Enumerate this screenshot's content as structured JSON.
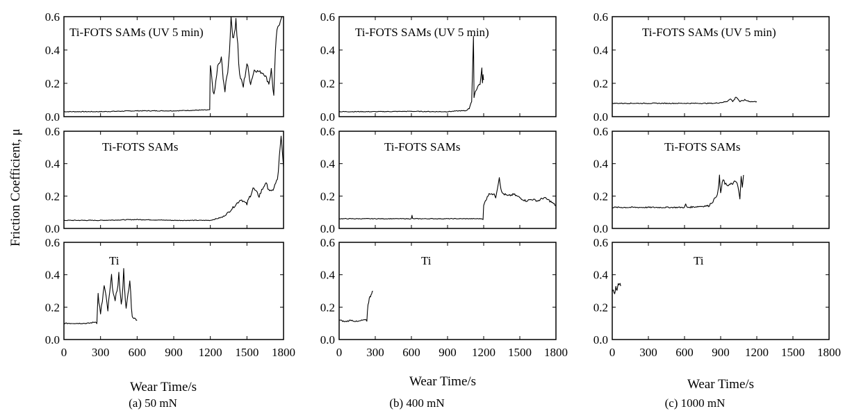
{
  "figure": {
    "ylabel": "Friction Coefficient, μ",
    "xlabel": "Wear Time/s",
    "xticks": [
      "0",
      "300",
      "600",
      "900",
      "1200",
      "1500",
      "1800"
    ],
    "yticks": [
      "0.0",
      "0.2",
      "0.4",
      "0.6"
    ]
  },
  "chart_data": [
    {
      "type": "line",
      "caption": "(a) 50 mN",
      "xlabel": "Wear Time/s",
      "ylabel": "Friction Coefficient, μ",
      "panels": [
        {
          "label": "Ti-FOTS SAMs (UV 5 min)",
          "xlim": [
            0,
            1800
          ],
          "ylim": [
            0,
            0.6
          ],
          "x": [
            0,
            300,
            600,
            900,
            1150,
            1195,
            1200,
            1230,
            1260,
            1290,
            1320,
            1350,
            1370,
            1390,
            1410,
            1440,
            1470,
            1500,
            1530,
            1560,
            1600,
            1640,
            1680,
            1700,
            1720,
            1740,
            1760,
            1780,
            1800
          ],
          "y": [
            0.03,
            0.03,
            0.035,
            0.035,
            0.04,
            0.04,
            0.3,
            0.12,
            0.3,
            0.34,
            0.15,
            0.32,
            0.6,
            0.45,
            0.6,
            0.25,
            0.18,
            0.32,
            0.2,
            0.28,
            0.27,
            0.26,
            0.2,
            0.28,
            0.12,
            0.48,
            0.55,
            0.6,
            0.6
          ]
        },
        {
          "label": "Ti-FOTS SAMs",
          "xlim": [
            0,
            1800
          ],
          "ylim": [
            0,
            0.6
          ],
          "x": [
            0,
            300,
            600,
            900,
            1200,
            1250,
            1300,
            1350,
            1400,
            1450,
            1500,
            1550,
            1600,
            1650,
            1700,
            1750,
            1780,
            1800
          ],
          "y": [
            0.05,
            0.05,
            0.055,
            0.05,
            0.05,
            0.06,
            0.07,
            0.1,
            0.14,
            0.18,
            0.15,
            0.25,
            0.2,
            0.28,
            0.22,
            0.3,
            0.55,
            0.38
          ]
        },
        {
          "label": "Ti",
          "xlim": [
            0,
            1800
          ],
          "ylim": [
            0,
            0.6
          ],
          "x": [
            0,
            100,
            200,
            270,
            280,
            300,
            330,
            360,
            390,
            420,
            450,
            470,
            490,
            510,
            540,
            560,
            580,
            600
          ],
          "y": [
            0.1,
            0.1,
            0.1,
            0.11,
            0.28,
            0.15,
            0.33,
            0.18,
            0.38,
            0.22,
            0.4,
            0.2,
            0.42,
            0.18,
            0.36,
            0.14,
            0.13,
            0.12
          ]
        }
      ]
    },
    {
      "type": "line",
      "caption": "(b) 400 mN",
      "xlabel": "Wear Time/s",
      "ylabel": "",
      "panels": [
        {
          "label": "Ti-FOTS SAMs (UV 5 min)",
          "xlim": [
            0,
            1800
          ],
          "ylim": [
            0,
            0.6
          ],
          "x": [
            0,
            300,
            600,
            800,
            900,
            1000,
            1050,
            1080,
            1100,
            1115,
            1120,
            1130,
            1150,
            1170,
            1185,
            1190,
            1195,
            1200
          ],
          "y": [
            0.03,
            0.03,
            0.032,
            0.03,
            0.03,
            0.035,
            0.035,
            0.05,
            0.1,
            0.45,
            0.12,
            0.15,
            0.18,
            0.2,
            0.28,
            0.2,
            0.25,
            0.22
          ]
        },
        {
          "label": "Ti-FOTS SAMs",
          "xlim": [
            0,
            1800
          ],
          "ylim": [
            0,
            0.6
          ],
          "x": [
            0,
            300,
            600,
            605,
            610,
            900,
            1195,
            1200,
            1230,
            1260,
            1300,
            1330,
            1350,
            1400,
            1450,
            1500,
            1550,
            1600,
            1650,
            1700,
            1750,
            1800
          ],
          "y": [
            0.06,
            0.06,
            0.06,
            0.08,
            0.06,
            0.06,
            0.06,
            0.14,
            0.2,
            0.22,
            0.2,
            0.32,
            0.22,
            0.2,
            0.21,
            0.19,
            0.17,
            0.18,
            0.17,
            0.19,
            0.17,
            0.14
          ]
        },
        {
          "label": "Ti",
          "xlim": [
            0,
            1800
          ],
          "ylim": [
            0,
            0.6
          ],
          "x": [
            0,
            50,
            100,
            150,
            200,
            230,
            240,
            250,
            260,
            270,
            280
          ],
          "y": [
            0.12,
            0.11,
            0.12,
            0.11,
            0.12,
            0.12,
            0.22,
            0.25,
            0.27,
            0.29,
            0.3
          ]
        }
      ]
    },
    {
      "type": "line",
      "caption": "(c) 1000 mN",
      "xlabel": "Wear Time/s",
      "ylabel": "",
      "panels": [
        {
          "label": "Ti-FOTS SAMs (UV 5 min)",
          "xlim": [
            0,
            1800
          ],
          "ylim": [
            0,
            0.6
          ],
          "x": [
            0,
            300,
            600,
            850,
            900,
            950,
            980,
            1000,
            1030,
            1060,
            1100,
            1150,
            1200
          ],
          "y": [
            0.08,
            0.08,
            0.08,
            0.08,
            0.085,
            0.09,
            0.11,
            0.09,
            0.12,
            0.09,
            0.1,
            0.09,
            0.09
          ]
        },
        {
          "label": "Ti-FOTS SAMs",
          "xlim": [
            0,
            1800
          ],
          "ylim": [
            0,
            0.6
          ],
          "x": [
            0,
            300,
            600,
            610,
            620,
            800,
            850,
            880,
            890,
            900,
            920,
            950,
            980,
            1000,
            1030,
            1060,
            1070,
            1080,
            1090
          ],
          "y": [
            0.13,
            0.13,
            0.13,
            0.15,
            0.13,
            0.14,
            0.18,
            0.23,
            0.32,
            0.22,
            0.3,
            0.26,
            0.28,
            0.27,
            0.3,
            0.18,
            0.32,
            0.25,
            0.33
          ]
        },
        {
          "label": "Ti",
          "xlim": [
            0,
            1800
          ],
          "ylim": [
            0,
            0.6
          ],
          "x": [
            0,
            10,
            20,
            30,
            40,
            50,
            60,
            70
          ],
          "y": [
            0.29,
            0.31,
            0.29,
            0.32,
            0.3,
            0.34,
            0.35,
            0.33
          ]
        }
      ]
    }
  ]
}
